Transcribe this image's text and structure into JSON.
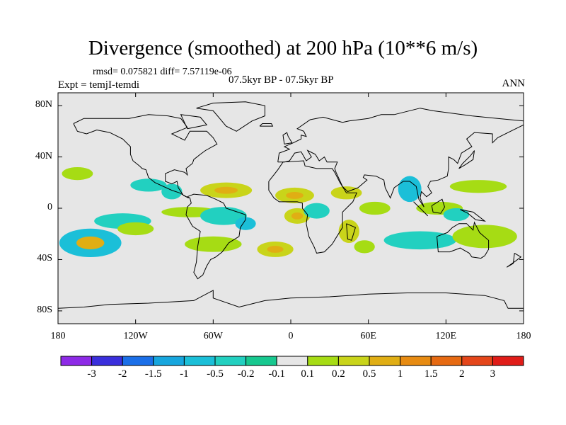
{
  "title": "Divergence (smoothed) at 200 hPa (10**6 m/s)",
  "subtitle": "rmsd= 0.075821 diff= 7.57119e-06",
  "left_title": "Expt = temjI-temdi",
  "center_title": "07.5kyr BP - 07.5kyr BP",
  "right_title": "ANN",
  "map": {
    "projection": "cylindrical-equidistant",
    "lon_range": [
      -180,
      180
    ],
    "lat_range": [
      -90,
      90
    ],
    "background_color": "#e6e6e6",
    "lat_ticks": [
      {
        "value": 80,
        "label": "80N"
      },
      {
        "value": 40,
        "label": "40N"
      },
      {
        "value": 0,
        "label": "0"
      },
      {
        "value": -40,
        "label": "40S"
      },
      {
        "value": -80,
        "label": "80S"
      }
    ],
    "lon_ticks": [
      {
        "value": -180,
        "label": "180"
      },
      {
        "value": -120,
        "label": "120W"
      },
      {
        "value": -60,
        "label": "60W"
      },
      {
        "value": 0,
        "label": "0"
      },
      {
        "value": 60,
        "label": "60E"
      },
      {
        "value": 120,
        "label": "120E"
      },
      {
        "value": 180,
        "label": "180"
      }
    ],
    "features": [
      {
        "name": "convergence-patch-pacific-subtropic-sw",
        "lon": -155,
        "lat": -27,
        "rlon": 24,
        "rlat": 11,
        "level": "-0.5",
        "core_level": "0.5"
      },
      {
        "name": "convergence-patch-central-pacific",
        "lon": -130,
        "lat": -10,
        "rlon": 22,
        "rlat": 6,
        "level": "-0.2"
      },
      {
        "name": "divergence-patch-pacific-south",
        "lon": -120,
        "lat": -16,
        "rlon": 14,
        "rlat": 5,
        "level": "0.1"
      },
      {
        "name": "divergence-patch-pacific-north",
        "lon": -165,
        "lat": 27,
        "rlon": 12,
        "rlat": 5,
        "level": "0.1"
      },
      {
        "name": "convergence-patch-east-pacific",
        "lon": -110,
        "lat": 18,
        "rlon": 14,
        "rlat": 5,
        "level": "-0.2"
      },
      {
        "name": "convergence-patch-mexico",
        "lon": -92,
        "lat": 13,
        "rlon": 8,
        "rlat": 6,
        "level": "-0.2"
      },
      {
        "name": "divergence-patch-caribbean",
        "lon": -50,
        "lat": 14,
        "rlon": 20,
        "rlat": 6,
        "level": "0.2",
        "core_level": "0.5"
      },
      {
        "name": "divergence-patch-south-pacific-east",
        "lon": -60,
        "lat": -28,
        "rlon": 22,
        "rlat": 6,
        "level": "0.1"
      },
      {
        "name": "divergence-patch-tropical-atlantic",
        "lon": -78,
        "lat": -3,
        "rlon": 22,
        "rlat": 4,
        "level": "0.1"
      },
      {
        "name": "convergence-patch-amazon",
        "lon": -52,
        "lat": -6,
        "rlon": 18,
        "rlat": 7,
        "level": "-0.2"
      },
      {
        "name": "convergence-patch-brazil",
        "lon": -35,
        "lat": -12,
        "rlon": 8,
        "rlat": 5,
        "level": "-0.5"
      },
      {
        "name": "divergence-patch-south-atlantic",
        "lon": -12,
        "lat": -32,
        "rlon": 14,
        "rlat": 6,
        "level": "0.2",
        "core_level": "0.5"
      },
      {
        "name": "divergence-patch-sahara",
        "lon": 3,
        "lat": 10,
        "rlon": 15,
        "rlat": 6,
        "level": "0.2",
        "core_level": "0.5"
      },
      {
        "name": "divergence-patch-gulf-guinea",
        "lon": 5,
        "lat": -6,
        "rlon": 10,
        "rlat": 6,
        "level": "0.2",
        "core_level": "0.5"
      },
      {
        "name": "convergence-patch-congo",
        "lon": 20,
        "lat": -2,
        "rlon": 10,
        "rlat": 6,
        "level": "-0.2"
      },
      {
        "name": "divergence-patch-east-africa",
        "lon": 43,
        "lat": 12,
        "rlon": 12,
        "rlat": 5,
        "level": "0.2"
      },
      {
        "name": "divergence-patch-madagascar",
        "lon": 45,
        "lat": -18,
        "rlon": 8,
        "rlat": 9,
        "level": "0.2"
      },
      {
        "name": "divergence-patch-west-indian-ocean",
        "lon": 57,
        "lat": -30,
        "rlon": 8,
        "rlat": 5,
        "level": "0.1"
      },
      {
        "name": "divergence-patch-arabian-sea",
        "lon": 65,
        "lat": 0,
        "rlon": 12,
        "rlat": 5,
        "level": "0.1"
      },
      {
        "name": "convergence-patch-bay-of-bengal",
        "lon": 92,
        "lat": 15,
        "rlon": 9,
        "rlat": 10,
        "level": "-0.5"
      },
      {
        "name": "convergence-patch-indian-ocean",
        "lon": 100,
        "lat": -25,
        "rlon": 28,
        "rlat": 7,
        "level": "-0.2"
      },
      {
        "name": "divergence-patch-maritime-continent",
        "lon": 115,
        "lat": 0,
        "rlon": 18,
        "rlat": 5,
        "level": "0.1"
      },
      {
        "name": "divergence-patch-west-pacific-north",
        "lon": 145,
        "lat": 17,
        "rlon": 22,
        "rlat": 5,
        "level": "0.1"
      },
      {
        "name": "divergence-patch-south-pacific-west",
        "lon": 150,
        "lat": -22,
        "rlon": 25,
        "rlat": 9,
        "level": "0.1"
      },
      {
        "name": "convergence-patch-pacific-warm-pool",
        "lon": 128,
        "lat": -5,
        "rlon": 10,
        "rlat": 5,
        "level": "-0.2"
      }
    ]
  },
  "colorbar": {
    "colors": [
      "#8d2ae6",
      "#3a2fdc",
      "#1b6fe8",
      "#17a6de",
      "#1bbfd8",
      "#22d0c0",
      "#17c88f",
      "#e6e6e6",
      "#a6dc14",
      "#c9d41a",
      "#e0ae14",
      "#e78b12",
      "#e66a12",
      "#e4461a",
      "#e01c18"
    ],
    "labels": [
      "-3",
      "-2",
      "-1.5",
      "-1",
      "-0.5",
      "-0.2",
      "-0.1",
      "0.1",
      "0.2",
      "0.5",
      "1",
      "1.5",
      "2",
      "3"
    ]
  },
  "level_colors": {
    "-0.5": "#1bbfd8",
    "-0.2": "#22d0c0",
    "0.1": "#a6dc14",
    "0.2": "#c9d41a",
    "0.5": "#e0ae14"
  }
}
